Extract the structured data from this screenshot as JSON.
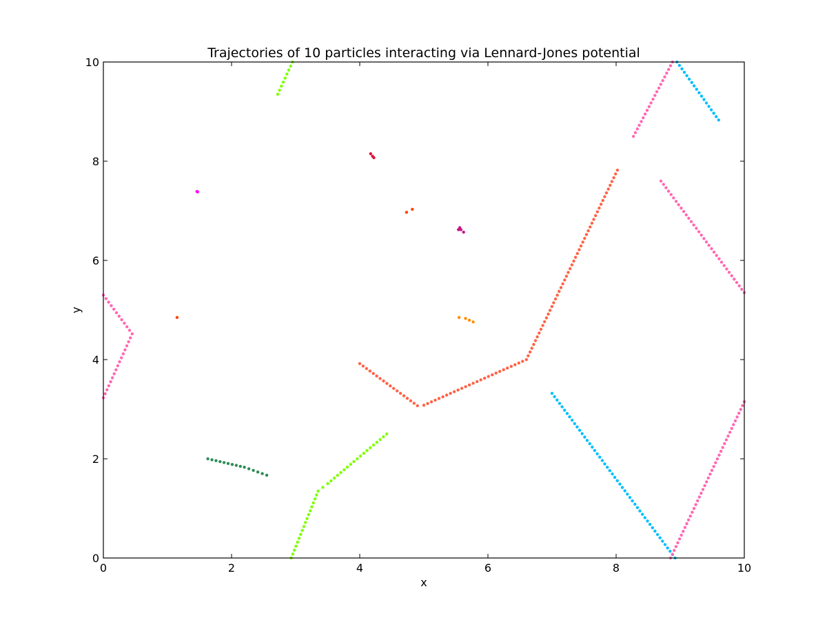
{
  "chart_data": {
    "type": "scatter",
    "title": "Trajectories of 10 particles interacting via Lennard-Jones potential",
    "xlabel": "x",
    "ylabel": "y",
    "xlim": [
      0,
      10
    ],
    "ylim": [
      0,
      10
    ],
    "xticks": [
      0,
      2,
      4,
      6,
      8,
      10
    ],
    "yticks": [
      0,
      2,
      4,
      6,
      8,
      10
    ],
    "grid": false,
    "series": [
      {
        "color": "#7fff00",
        "points": [
          [
            2.72,
            9.35
          ],
          [
            2.95,
            10.0
          ],
          [
            2.93,
            0.0
          ],
          [
            3.35,
            1.35
          ],
          [
            3.5,
            1.5
          ],
          [
            4.42,
            2.5
          ]
        ]
      },
      {
        "color": "#dc143c",
        "points": [
          [
            4.17,
            8.15
          ],
          [
            4.2,
            8.1
          ],
          [
            4.22,
            8.07
          ]
        ]
      },
      {
        "color": "#ff00ff",
        "points": [
          [
            1.46,
            7.39
          ],
          [
            1.47,
            7.38
          ]
        ]
      },
      {
        "color": "#c71585",
        "points": [
          [
            5.54,
            6.62
          ],
          [
            5.56,
            6.66
          ],
          [
            5.58,
            6.62
          ],
          [
            5.62,
            6.57
          ]
        ]
      },
      {
        "color": "#ff4500",
        "points": [
          [
            1.15,
            4.85
          ],
          [
            4.73,
            6.97
          ],
          [
            4.82,
            7.03
          ]
        ]
      },
      {
        "color": "#ff8c00",
        "points": [
          [
            5.55,
            4.85
          ],
          [
            5.65,
            4.83
          ],
          [
            5.77,
            4.76
          ]
        ]
      },
      {
        "color": "#ff6347",
        "points": [
          [
            4.0,
            3.92
          ],
          [
            4.9,
            3.07
          ],
          [
            5.0,
            3.08
          ],
          [
            6.6,
            4.0
          ],
          [
            8.02,
            7.82
          ]
        ]
      },
      {
        "color": "#2e8b57",
        "points": [
          [
            1.63,
            2.0
          ],
          [
            2.2,
            1.83
          ],
          [
            2.55,
            1.67
          ]
        ]
      },
      {
        "color": "#00bfff",
        "points": [
          [
            7.0,
            3.32
          ],
          [
            8.92,
            0.0
          ],
          [
            8.95,
            10.0
          ],
          [
            9.6,
            8.83
          ]
        ]
      },
      {
        "color": "#ff69b4",
        "points": [
          [
            0.0,
            5.3
          ],
          [
            0.45,
            4.52
          ],
          [
            0.0,
            3.23
          ],
          [
            8.27,
            8.5
          ],
          [
            8.88,
            10.0
          ],
          [
            8.85,
            0.0
          ],
          [
            10.0,
            3.15
          ],
          [
            8.7,
            7.6
          ],
          [
            10.0,
            5.35
          ]
        ]
      }
    ]
  }
}
